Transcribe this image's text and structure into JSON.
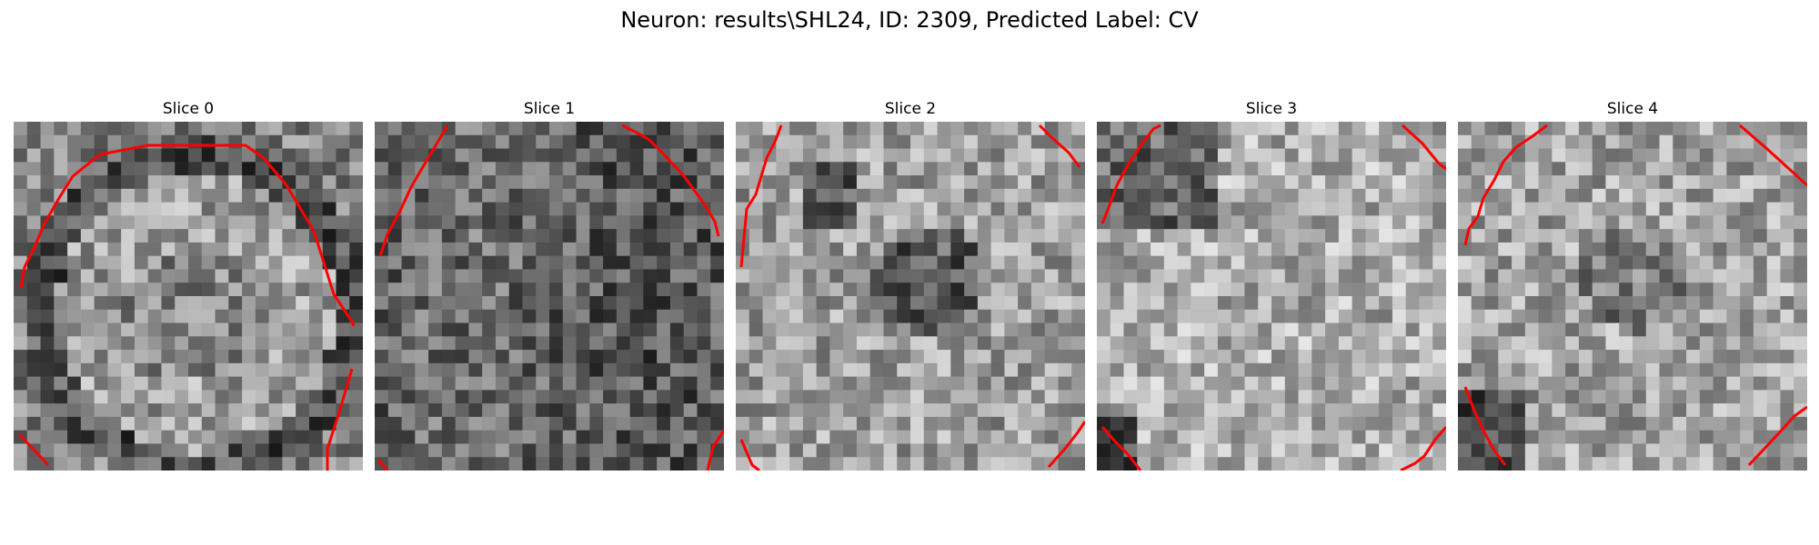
{
  "figure": {
    "suptitle": "Neuron: results\\SHL24, ID: 2309, Predicted Label: CV",
    "contour_color": "#ff0000",
    "colormap": "gray",
    "panels": [
      {
        "title": "Slice 0",
        "tone": "bright-cell-body-with-dark-membrane"
      },
      {
        "title": "Slice 1",
        "tone": "dark-mottled"
      },
      {
        "title": "Slice 2",
        "tone": "medium-with-dark-center"
      },
      {
        "title": "Slice 3",
        "tone": "light-mottled"
      },
      {
        "title": "Slice 4",
        "tone": "light-mottled-dark-lower-left"
      }
    ]
  }
}
